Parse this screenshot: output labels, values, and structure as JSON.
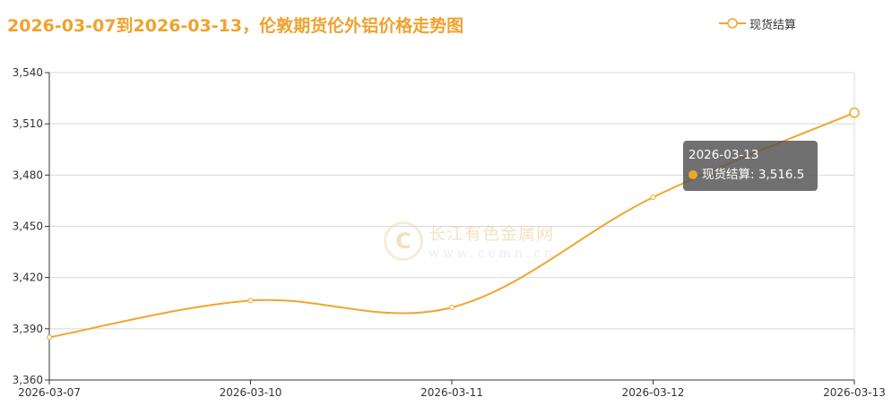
{
  "colors": {
    "accent": "#f0a22e",
    "line": "#f0a62c",
    "axis": "#333333",
    "grid": "#d8d8d8"
  },
  "watermark": {
    "logo_text": "C",
    "name": "长江有色金属网",
    "url": "www.ccmn.cn"
  },
  "tooltip": {
    "date": "2026-03-13",
    "series_name": "现货结算",
    "separator": ": ",
    "value_text": "3,516.5"
  },
  "chart_data": {
    "type": "line",
    "title": "2026-03-07到2026-03-13，伦敦期货伦外铝价格走势图",
    "categories": [
      "2026-03-07",
      "2026-03-10",
      "2026-03-11",
      "2026-03-12",
      "2026-03-13"
    ],
    "series": [
      {
        "name": "现货结算",
        "values": [
          3385,
          3406.5,
          3402.5,
          3467,
          3516.5
        ]
      }
    ],
    "ylim": [
      3360,
      3540
    ],
    "yticks": [
      3360,
      3390,
      3420,
      3450,
      3480,
      3510,
      3540
    ],
    "ytick_labels": [
      "3,360",
      "3,390",
      "3,420",
      "3,450",
      "3,480",
      "3,510",
      "3,540"
    ],
    "grid": true,
    "legend": "top-right",
    "xlabel": "",
    "ylabel": ""
  }
}
